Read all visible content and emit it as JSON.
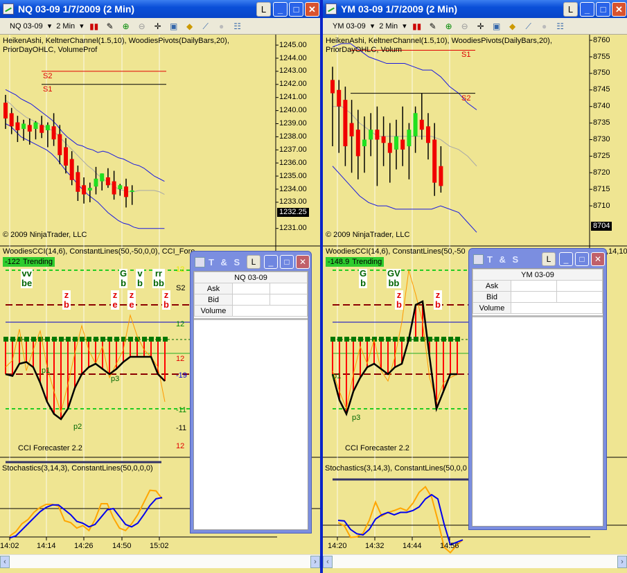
{
  "left": {
    "title": "NQ 03-09  1/7/2009 (2 Min)",
    "link_button": "L",
    "instrument": "NQ 03-09",
    "interval": "2 Min",
    "price_indicators": "HeikenAshi, KeltnerChannel(1.5,10), WoodiesPivots(DailyBars,20), PriorDayOHLC, VolumeProf",
    "copyright": "© 2009 NinjaTrader, LLC",
    "price_ticks": [
      "1245.00",
      "1244.00",
      "1243.00",
      "1242.00",
      "1241.00",
      "1240.00",
      "1239.00",
      "1238.00",
      "1237.00",
      "1236.00",
      "1235.00",
      "1234.00",
      "1233.00",
      "1231.00"
    ],
    "last_price": "1232.25",
    "pivots": [
      {
        "label": "S2",
        "price": 1243.0,
        "color": "#e00000"
      },
      {
        "label": "S1",
        "price": 1242.0,
        "color": "#000000"
      }
    ],
    "candles": [
      [
        1240.6,
        1241.2,
        1238.6,
        1239.4
      ],
      [
        1239.8,
        1240.2,
        1238.2,
        1238.8
      ],
      [
        1239.1,
        1239.6,
        1237.6,
        1238.5
      ],
      [
        1238.6,
        1239.3,
        1237.7,
        1239.0
      ],
      [
        1238.9,
        1239.4,
        1237.4,
        1238.4
      ],
      [
        1238.6,
        1239.2,
        1237.8,
        1239.1
      ],
      [
        1238.9,
        1239.6,
        1237.9,
        1238.3
      ],
      [
        1238.5,
        1239.1,
        1237.2,
        1238.9
      ],
      [
        1238.8,
        1239.8,
        1237.3,
        1237.8
      ],
      [
        1238.2,
        1238.9,
        1235.9,
        1236.6
      ],
      [
        1237.2,
        1237.9,
        1235.2,
        1235.8
      ],
      [
        1236.3,
        1236.9,
        1234.3,
        1234.7
      ],
      [
        1235.3,
        1235.8,
        1233.1,
        1233.8
      ],
      [
        1234.3,
        1234.9,
        1232.9,
        1233.6
      ],
      [
        1233.9,
        1234.5,
        1233.0,
        1234.1
      ],
      [
        1234.2,
        1235.7,
        1233.6,
        1234.8
      ],
      [
        1234.6,
        1235.2,
        1233.9,
        1235.2
      ],
      [
        1234.9,
        1235.6,
        1234.1,
        1234.3
      ],
      [
        1234.6,
        1235.4,
        1233.2,
        1233.6
      ],
      [
        1234.0,
        1234.4,
        1233.5,
        1234.3
      ],
      [
        1234.2,
        1234.8,
        1232.6,
        1233.4
      ],
      [
        1233.8,
        1234.3,
        1232.8,
        1233.9
      ]
    ],
    "keltner_upper": [
      1241.6,
      1241.4,
      1241.2,
      1240.9,
      1240.7,
      1240.5,
      1240.2,
      1239.9,
      1239.6,
      1239.3,
      1238.9,
      1238.4,
      1238.0,
      1237.7,
      1237.4,
      1237.3,
      1237.1,
      1237.0,
      1236.8,
      1236.9,
      1236.8,
      1236.6,
      1236.4,
      1236.3,
      1236.1,
      1235.9,
      1235.8,
      1235.6,
      1235.3,
      1235.0,
      1234.8,
      1234.6
    ],
    "keltner_mid": [
      1240.8,
      1240.5,
      1240.1,
      1239.8,
      1239.5,
      1239.3,
      1239.1,
      1238.9,
      1238.7,
      1238.5,
      1238.2,
      1237.8,
      1237.4,
      1237.0,
      1236.6,
      1236.2,
      1235.8,
      1235.5,
      1235.1,
      1234.8,
      1234.5,
      1234.3,
      1234.0,
      1233.9,
      1233.8,
      1233.8,
      1233.9,
      1233.9,
      1233.9,
      1233.9,
      1233.8,
      1233.6
    ],
    "keltner_lower": [
      1239.0,
      1238.8,
      1238.4,
      1238.0,
      1237.8,
      1237.6,
      1237.4,
      1237.2,
      1237.0,
      1236.7,
      1236.3,
      1235.8,
      1235.3,
      1234.9,
      1234.4,
      1234.0,
      1233.6,
      1233.3,
      1233.0,
      1232.6,
      1232.2,
      1231.9,
      1231.6,
      1231.4,
      1231.3,
      1231.1,
      1231.0,
      1231.0,
      1231.0,
      1231.0,
      1231.0,
      1231.0
    ],
    "cci_title": "WoodiesCCI(14,6), ConstantLines(50,-50,0,0), CCI_Fore",
    "cci_badge": "-122",
    "cci_badge_text": "Trending",
    "cci_axis_labels": [
      {
        "t": "12",
        "c": "#e8e800"
      },
      {
        "t": "S2",
        "c": "#000"
      },
      {
        "t": "12",
        "c": "#008800"
      },
      {
        "t": "12",
        "c": "#e00000"
      },
      {
        "t": "-19",
        "c": "#0000e0"
      },
      {
        "t": "-11",
        "c": "#008800"
      },
      {
        "t": "-11",
        "c": "#000"
      },
      {
        "t": "12",
        "c": "#e00000"
      }
    ],
    "cci_signals": [
      {
        "t": "vv",
        "b": "be",
        "c": "#006400",
        "row": 0
      },
      {
        "t": "z",
        "b": "b",
        "c": "#e00000",
        "row": 1
      },
      {
        "t": "z",
        "b": "e",
        "c": "#e00000",
        "row": 1
      },
      {
        "t": "G",
        "b": "b",
        "c": "#006400",
        "row": 0
      },
      {
        "t": "z",
        "b": "e",
        "c": "#e00000",
        "row": 1
      },
      {
        "t": "v",
        "b": "b",
        "c": "#006400",
        "row": 0
      },
      {
        "t": "rr",
        "b": "bb",
        "c": "#006400",
        "row": 0
      },
      {
        "t": "z",
        "b": "b",
        "c": "#e00000",
        "row": 1
      }
    ],
    "cci_points": [
      "p1",
      "p2",
      "p3"
    ],
    "cci": [
      -100,
      -110,
      -40,
      -30,
      -60,
      -150,
      -260,
      -330,
      -360,
      -300,
      -180,
      -100,
      -60,
      -40,
      -70,
      -100,
      -70,
      -30,
      0,
      0,
      0,
      0,
      -100,
      -140
    ],
    "cci_turbo": [
      -60,
      -20,
      160,
      -80,
      40,
      150,
      -60,
      -200,
      -320,
      -160,
      20,
      180,
      40,
      -40,
      60,
      -120,
      -40,
      40,
      240,
      120,
      40,
      0,
      -60,
      -260
    ],
    "cci_forecaster": "CCI Forecaster 2.2",
    "stoch_title": "Stochastics(3,14,3), ConstantLines(50,0,0,0)",
    "stoch_d": [
      2,
      5,
      15,
      25,
      35,
      45,
      52,
      56,
      56,
      48,
      40,
      29,
      26,
      20,
      24,
      36,
      48,
      50,
      37,
      24,
      20,
      26,
      40,
      55,
      66,
      68
    ],
    "stoch_k": [
      5,
      12,
      25,
      32,
      44,
      52,
      57,
      57,
      54,
      30,
      27,
      18,
      22,
      14,
      32,
      58,
      58,
      35,
      18,
      14,
      25,
      40,
      60,
      80,
      79,
      66
    ],
    "time_labels": [
      "14:02",
      "14:14",
      "14:26",
      "14:50",
      "15:02"
    ],
    "ts": {
      "title": "T & S",
      "link_button": "L",
      "instrument": "NQ 03-09",
      "rows": [
        "Ask",
        "Bid",
        "Volume"
      ]
    }
  },
  "right": {
    "title": "YM 03-09  1/7/2009 (2 Min)",
    "link_button": "L",
    "instrument": "YM 03-09",
    "interval": "2 Min",
    "price_indicators": "HeikenAshi, KeltnerChannel(1.5,10), WoodiesPivots(DailyBars,20), PriorDayOHLC, Volum",
    "copyright": "© 2009 NinjaTrader, LLC",
    "price_ticks": [
      "8760",
      "8755",
      "8750",
      "8745",
      "8740",
      "8735",
      "8730",
      "8725",
      "8720",
      "8715",
      "8710"
    ],
    "last_price": "8704",
    "pivots": [
      {
        "label": "S1",
        "price": 8757,
        "color": "#e00000"
      },
      {
        "label": "S2",
        "price": 8744,
        "color": "#000000"
      }
    ],
    "candles": [
      [
        8748,
        8752,
        8728,
        8744
      ],
      [
        8745,
        8748,
        8726,
        8740
      ],
      [
        8742,
        8746,
        8722,
        8728
      ],
      [
        8735,
        8742,
        8720,
        8731
      ],
      [
        8733,
        8739,
        8718,
        8725
      ],
      [
        8728,
        8737,
        8720,
        8730
      ],
      [
        8730,
        8738,
        8725,
        8733
      ],
      [
        8733,
        8740,
        8716,
        8730
      ],
      [
        8731,
        8737,
        8722,
        8729
      ],
      [
        8729,
        8735,
        8717,
        8726
      ],
      [
        8727,
        8736,
        8721,
        8731
      ],
      [
        8730,
        8740,
        8722,
        8727
      ],
      [
        8728,
        8735,
        8718,
        8733
      ],
      [
        8731,
        8740,
        8726,
        8738
      ],
      [
        8736,
        8744,
        8730,
        8733
      ],
      [
        8734,
        8738,
        8724,
        8729
      ],
      [
        8730,
        8735,
        8713,
        8717
      ],
      [
        8722,
        8728,
        8714,
        8716
      ]
    ],
    "keltner_upper": [
      8758,
      8759,
      8759,
      8757,
      8755,
      8754,
      8753,
      8753,
      8753,
      8752,
      8751,
      8751,
      8749,
      8746,
      8744,
      8741,
      8739
    ],
    "keltner_mid": [
      8740,
      8740,
      8738,
      8735,
      8733,
      8731,
      8731,
      8731,
      8731,
      8731,
      8731,
      8731,
      8730,
      8728,
      8727,
      8725,
      8722
    ],
    "keltner_lower": [
      8722,
      8719,
      8716,
      8713,
      8711,
      8710,
      8710,
      8709,
      8709,
      8709,
      8709,
      8709,
      8710,
      8709,
      8708,
      8705,
      8702
    ],
    "cci_title": "WoodiesCCI(14,6), ConstantLines(50,-50",
    "cci_title_right": ",14,10",
    "cci_badge": "-148.9",
    "cci_badge_text": "Trending",
    "cci_signals": [
      {
        "t": "G",
        "b": "b",
        "c": "#006400",
        "row": 0
      },
      {
        "t": "GV",
        "b": "bb",
        "c": "#006400",
        "row": 0
      },
      {
        "t": "z",
        "b": "b",
        "c": "#e00000",
        "row": 1
      },
      {
        "t": "z",
        "b": "b",
        "c": "#e00000",
        "row": 1
      }
    ],
    "cci_points": [
      "p1",
      "p3"
    ],
    "cci": [
      -100,
      -250,
      -330,
      -200,
      -120,
      -60,
      -40,
      -70,
      -100,
      -60,
      -40,
      100,
      300,
      320,
      0,
      -300,
      -200,
      -100,
      -100
    ],
    "cci_turbo": [
      -80,
      -200,
      -300,
      -100,
      60,
      -40,
      100,
      -80,
      -140,
      0,
      200,
      500,
      360,
      200,
      -120,
      -260,
      -150,
      -120,
      -100
    ],
    "cci_forecaster": "CCI Forecaster 2.2",
    "stoch_title": "Stochastics(3,14,3), ConstantLines(50,0,0",
    "stoch_d": [
      58,
      57,
      43,
      36,
      34,
      43,
      60,
      67,
      71,
      67,
      71,
      71,
      74,
      80,
      93,
      100,
      93,
      52,
      18,
      22,
      26
    ],
    "stoch_k": [
      54,
      49,
      30,
      31,
      37,
      58,
      88,
      65,
      71,
      74,
      78,
      74,
      86,
      104,
      113,
      96,
      58,
      14,
      5,
      17,
      26
    ],
    "time_labels": [
      "14:20",
      "14:32",
      "14:44",
      "14:56"
    ],
    "ts": {
      "title": "T & S",
      "link_button": "L",
      "instrument": "YM 03-09",
      "rows": [
        "Ask",
        "Bid",
        "Volume"
      ]
    }
  },
  "colors": {
    "chart_bg": "#efe592",
    "up": "#20e020",
    "down": "#f00000",
    "keltner": "#1a1ae0",
    "stoch_k": "#ffa500",
    "stoch_d": "#0000ee"
  }
}
